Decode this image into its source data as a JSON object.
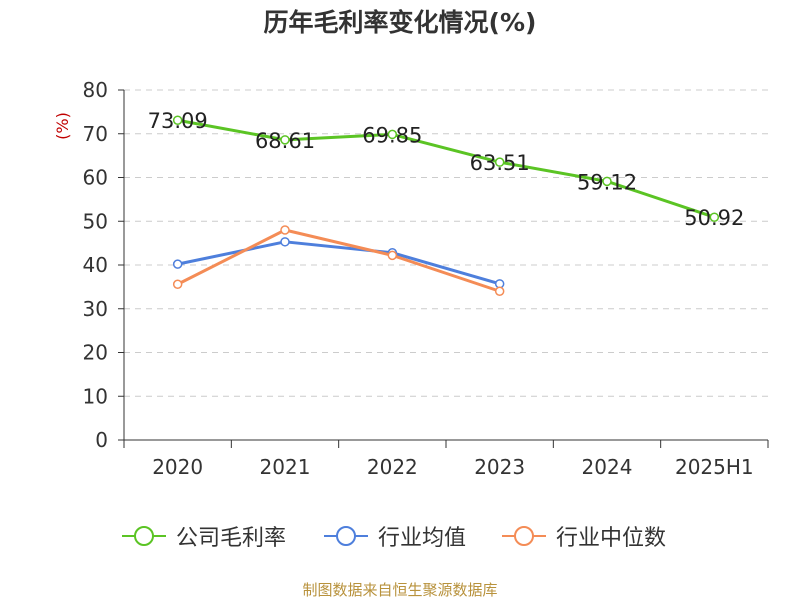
{
  "chart_data": {
    "type": "line",
    "title": "历年毛利率变化情况(%)",
    "ylabel": "(%)",
    "xlabel": "",
    "categories": [
      "2020",
      "2021",
      "2022",
      "2023",
      "2024",
      "2025H1"
    ],
    "ylim": [
      0,
      80
    ],
    "yticks": [
      "0",
      "10",
      "20",
      "30",
      "40",
      "50",
      "60",
      "70",
      "80"
    ],
    "grid": true,
    "legend_position": "bottom",
    "series": [
      {
        "name": "公司毛利率",
        "color": "#5bc424",
        "values": [
          73.09,
          68.61,
          69.85,
          63.51,
          59.12,
          50.92
        ],
        "labels": [
          "73.09",
          "68.61",
          "69.85",
          "63.51",
          "59.12",
          "50.92"
        ]
      },
      {
        "name": "行业均值",
        "color": "#4e7fdc",
        "values": [
          40.2,
          45.3,
          42.8,
          35.7,
          null,
          null
        ]
      },
      {
        "name": "行业中位数",
        "color": "#f48c56",
        "values": [
          35.6,
          48.0,
          42.2,
          34.0,
          null,
          null
        ]
      }
    ]
  },
  "footer": {
    "source": "制图数据来自恒生聚源数据库"
  }
}
